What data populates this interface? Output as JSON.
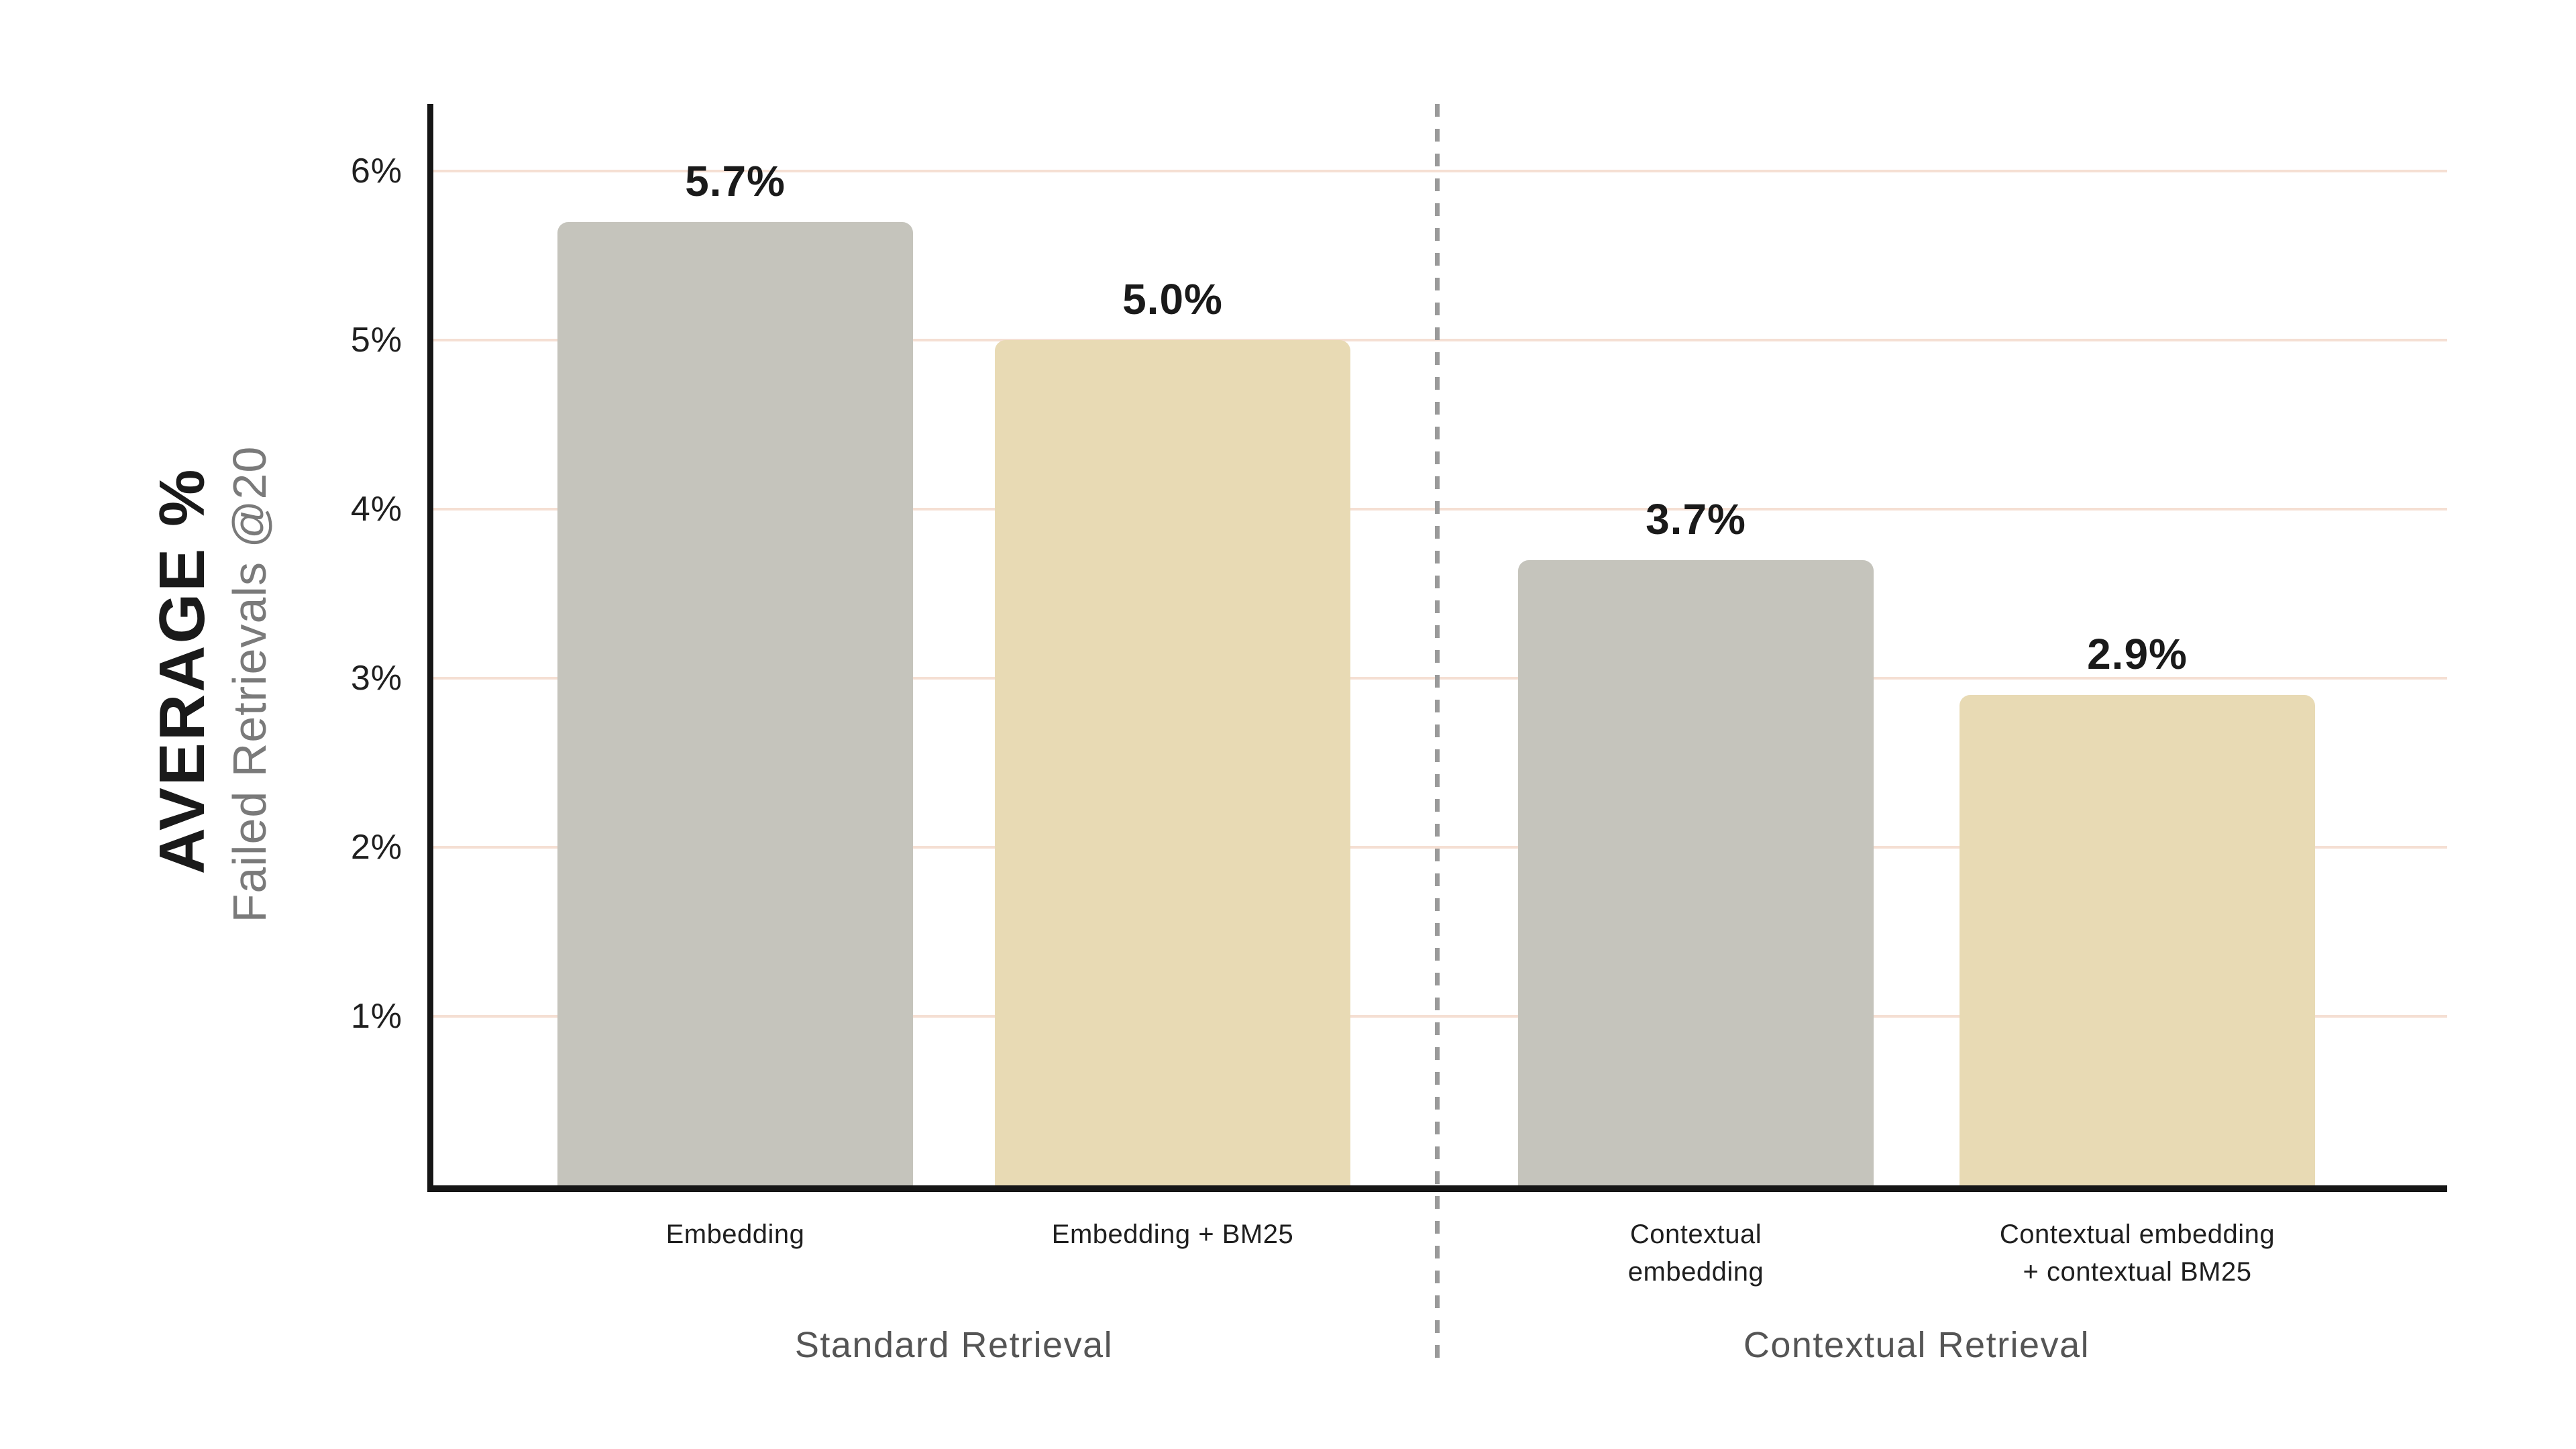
{
  "chart_data": {
    "type": "bar",
    "title": "",
    "ylabel_primary": "AVERAGE %",
    "ylabel_secondary": "Failed Retrievals @20",
    "y_ticks": [
      "1%",
      "2%",
      "3%",
      "4%",
      "5%",
      "6%"
    ],
    "y_tick_values": [
      1,
      2,
      3,
      4,
      5,
      6
    ],
    "ylim": [
      0,
      6.4
    ],
    "grid": "horizontal-only",
    "legend_position": "none",
    "unit": "%",
    "groups": [
      {
        "label": "Standard Retrieval",
        "bars": [
          {
            "category_lines": [
              "Embedding"
            ],
            "value": 5.7,
            "value_label": "5.7%",
            "color_key": "bar_gray"
          },
          {
            "category_lines": [
              "Embedding + BM25"
            ],
            "value": 5.0,
            "value_label": "5.0%",
            "color_key": "bar_tan"
          }
        ]
      },
      {
        "label": "Contextual Retrieval",
        "bars": [
          {
            "category_lines": [
              "Contextual",
              "embedding"
            ],
            "value": 3.7,
            "value_label": "3.7%",
            "color_key": "bar_gray"
          },
          {
            "category_lines": [
              "Contextual embedding",
              "+ contextual BM25"
            ],
            "value": 2.9,
            "value_label": "2.9%",
            "color_key": "bar_tan"
          }
        ]
      }
    ],
    "colors": {
      "background": "#ffffff",
      "bar_gray": "#c5c4bc",
      "bar_tan": "#e8dab4",
      "gridline": "#f5dfd3",
      "axis": "#161616",
      "divider": "#9a9a9a",
      "value_label": "#1a1a1a",
      "category_label": "#1f1f1f",
      "tick_label": "#1f1f1f",
      "group_label": "#555555",
      "ylabel_primary": "#1a1a1a",
      "ylabel_secondary": "#7a7a7a"
    }
  }
}
